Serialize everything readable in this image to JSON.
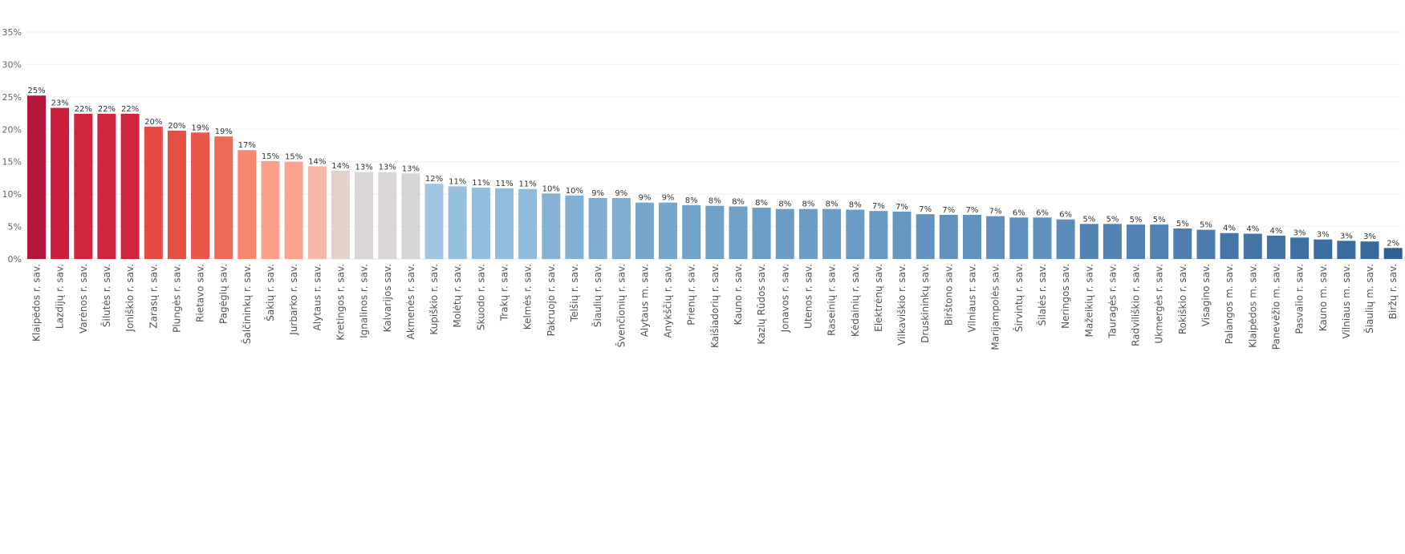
{
  "chart_data": {
    "type": "bar",
    "title": "",
    "xlabel": "",
    "ylabel": "",
    "ylim": [
      0,
      35
    ],
    "y_ticks": [
      "0%",
      "5%",
      "10%",
      "15%",
      "20%",
      "25%",
      "30%",
      "35%"
    ],
    "y_tick_values": [
      0,
      5,
      10,
      15,
      20,
      25,
      30,
      35
    ],
    "grid": true,
    "categories": [
      "Klaipėdos r. sav.",
      "Lazdijų r. sav.",
      "Varėnos r. sav.",
      "Šilutės r. sav.",
      "Joniškio r. sav.",
      "Zarasų r. sav.",
      "Plungės r. sav.",
      "Rietavo sav.",
      "Pagėgių sav.",
      "Šalčininkų r. sav.",
      "Šakių r. sav.",
      "Jurbarko r. sav.",
      "Alytaus r. sav.",
      "Kretingos r. sav.",
      "Ignalinos r. sav.",
      "Kalvarijos sav.",
      "Akmenės r. sav.",
      "Kupiškio r. sav.",
      "Molėtų r. sav.",
      "Skuodo r. sav.",
      "Trakų r. sav.",
      "Kelmės r. sav.",
      "Pakruojo r. sav.",
      "Telšių r. sav.",
      "Šiaulių r. sav.",
      "Švenčionių r. sav.",
      "Alytaus m. sav.",
      "Anykščių r. sav.",
      "Prienų r. sav.",
      "Kaišiadorių r. sav.",
      "Kauno r. sav.",
      "Kazlų Rūdos sav.",
      "Jonavos r. sav.",
      "Utenos r. sav.",
      "Raseinių r. sav.",
      "Kėdainių r. sav.",
      "Elektrėnų sav.",
      "Vilkaviškio r. sav.",
      "Druskininkų sav.",
      "Birštono sav.",
      "Vilniaus r. sav.",
      "Marijampolės sav.",
      "Širvintų r. sav.",
      "Šilalės r. sav.",
      "Neringos sav.",
      "Mažeikių r. sav.",
      "Tauragės r. sav.",
      "Radviliškio r. sav.",
      "Ukmergės r. sav.",
      "Rokiškio r. sav.",
      "Visagino sav.",
      "Palangos m. sav.",
      "Klaipėdos m. sav.",
      "Panevėžio m. sav.",
      "Pasvalio r. sav.",
      "Kauno m. sav.",
      "Vilniaus m. sav.",
      "Šiaulių m. sav.",
      "Biržų r. sav."
    ],
    "values": [
      25.2,
      23.3,
      22.4,
      22.4,
      22.4,
      20.4,
      19.8,
      19.5,
      18.9,
      16.8,
      15.1,
      15.0,
      14.3,
      13.6,
      13.4,
      13.4,
      13.2,
      11.6,
      11.2,
      11.0,
      10.9,
      10.8,
      10.1,
      9.8,
      9.4,
      9.4,
      8.7,
      8.7,
      8.3,
      8.2,
      8.1,
      7.9,
      7.7,
      7.7,
      7.7,
      7.6,
      7.4,
      7.3,
      6.9,
      6.8,
      6.8,
      6.6,
      6.4,
      6.4,
      6.1,
      5.4,
      5.4,
      5.3,
      5.3,
      4.7,
      4.5,
      4.0,
      3.9,
      3.6,
      3.3,
      3.0,
      2.8,
      2.7,
      1.7
    ],
    "data_labels": [
      "25%",
      "23%",
      "22%",
      "22%",
      "22%",
      "20%",
      "20%",
      "19%",
      "19%",
      "17%",
      "15%",
      "15%",
      "14%",
      "14%",
      "13%",
      "13%",
      "13%",
      "12%",
      "11%",
      "11%",
      "11%",
      "11%",
      "10%",
      "10%",
      "9%",
      "9%",
      "9%",
      "9%",
      "8%",
      "8%",
      "8%",
      "8%",
      "8%",
      "8%",
      "8%",
      "8%",
      "7%",
      "7%",
      "7%",
      "7%",
      "7%",
      "7%",
      "6%",
      "6%",
      "6%",
      "5%",
      "5%",
      "5%",
      "5%",
      "5%",
      "5%",
      "4%",
      "4%",
      "4%",
      "3%",
      "3%",
      "3%",
      "3%",
      "2%"
    ],
    "colors": [
      "#b5153a",
      "#c91f3a",
      "#d1243d",
      "#d1243d",
      "#d1243d",
      "#e5493f",
      "#e64f43",
      "#e9564b",
      "#ed6a58",
      "#f7876f",
      "#f9a18c",
      "#f9a38f",
      "#f5b7aa",
      "#e3d1cb",
      "#dad6d6",
      "#dad6d6",
      "#d5d5d6",
      "#9fc5e2",
      "#97bfde",
      "#94bcdd",
      "#92bbdc",
      "#91bbdc",
      "#87b2d6",
      "#84b0d5",
      "#7faccf",
      "#7faccf",
      "#76a6cc",
      "#76a6cc",
      "#71a2ca",
      "#70a1c9",
      "#6fa0c8",
      "#6c9ec6",
      "#6a9cc5",
      "#6a9cc5",
      "#6a9cc5",
      "#699bc4",
      "#6799c3",
      "#6698c2",
      "#6294bf",
      "#6193be",
      "#6193be",
      "#5f91bc",
      "#5d90bb",
      "#5d90bb",
      "#5a8db9",
      "#5383b3",
      "#5383b3",
      "#5282b2",
      "#5282b2",
      "#4e7eaf",
      "#4c7cad",
      "#4676a8",
      "#4575a7",
      "#4272a5",
      "#3f70a3",
      "#3c6da0",
      "#3a6b9e",
      "#396a9d",
      "#2f5f94"
    ]
  }
}
